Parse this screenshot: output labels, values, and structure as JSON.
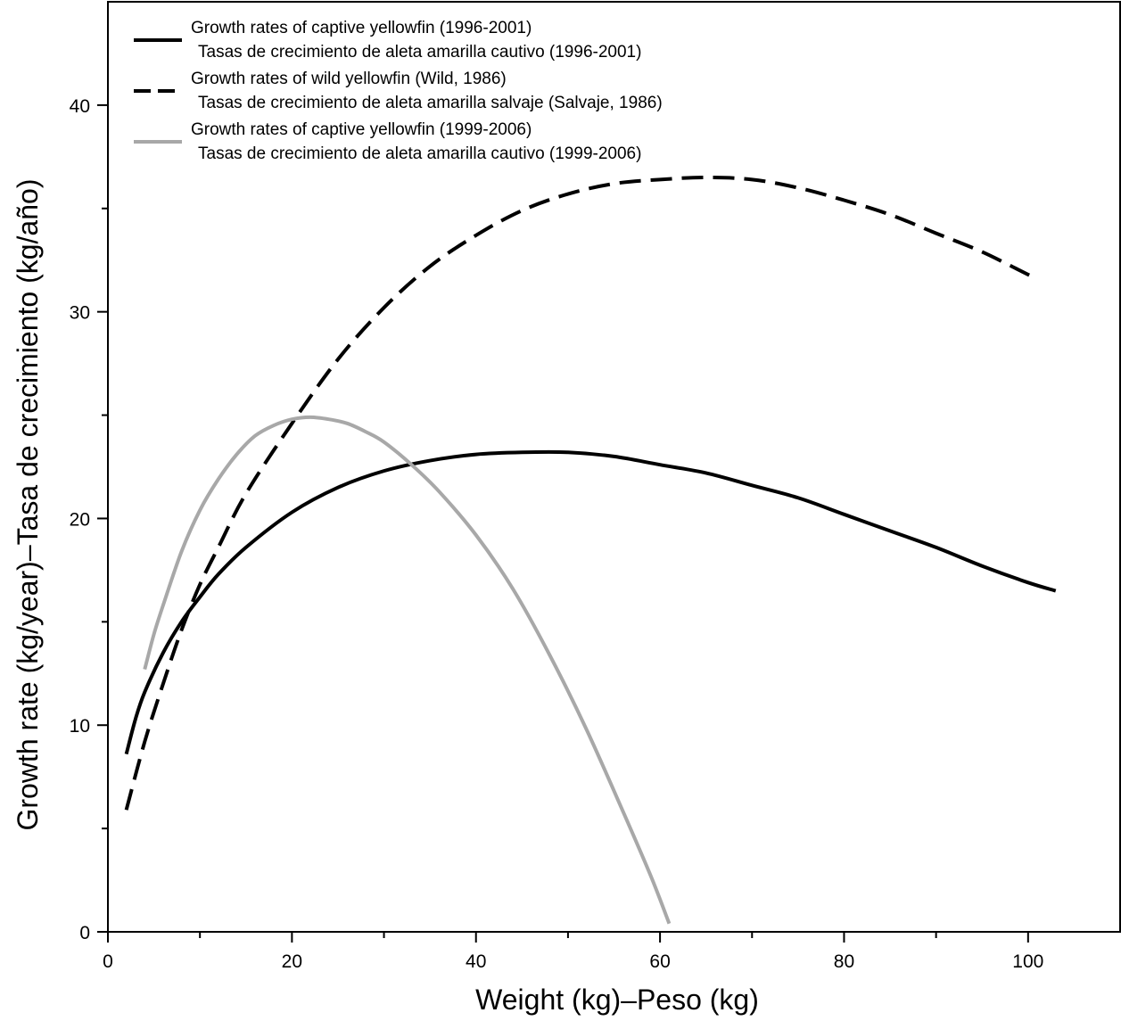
{
  "chart_data": {
    "type": "line",
    "title": "",
    "xlabel": "Weight (kg)–Peso (kg)",
    "ylabel": "Growth rate (kg/year)–Tasa de crecimiento (kg/año)",
    "xlim": [
      0,
      110
    ],
    "ylim": [
      0,
      45
    ],
    "x_ticks_major": [
      0,
      20,
      40,
      60,
      80,
      100
    ],
    "x_ticks_minor": [
      10,
      30,
      50,
      70,
      90
    ],
    "y_ticks_major": [
      0,
      10,
      20,
      30,
      40
    ],
    "y_ticks_minor": [
      5,
      15,
      25,
      35
    ],
    "grid": false,
    "legend_position": "top-left",
    "series": [
      {
        "name": "Growth rates of captive yellowfin (1996-2001)",
        "name_es": "Tasas de crecimiento de aleta amarilla cautivo (1996-2001)",
        "style": "solid",
        "color": "#000000",
        "x": [
          2,
          3,
          4,
          6,
          8,
          10,
          12,
          15,
          20,
          25,
          30,
          35,
          40,
          45,
          50,
          55,
          60,
          65,
          70,
          75,
          80,
          85,
          90,
          95,
          100,
          103
        ],
        "y": [
          8.6,
          10.3,
          11.6,
          13.5,
          15.0,
          16.2,
          17.3,
          18.6,
          20.3,
          21.5,
          22.3,
          22.8,
          23.1,
          23.2,
          23.2,
          23.0,
          22.6,
          22.2,
          21.6,
          21.0,
          20.2,
          19.4,
          18.6,
          17.7,
          16.9,
          16.5
        ]
      },
      {
        "name": "Growth rates of wild yellowfin (Wild, 1986)",
        "name_es": "Tasas de crecimiento de aleta amarilla salvaje (Salvaje, 1986)",
        "style": "dashed",
        "color": "#000000",
        "x": [
          2,
          4,
          6,
          8,
          10,
          12,
          15,
          20,
          25,
          30,
          35,
          40,
          45,
          50,
          55,
          60,
          65,
          70,
          75,
          80,
          85,
          90,
          95,
          100,
          101
        ],
        "y": [
          5.9,
          9.2,
          12.0,
          14.6,
          16.8,
          18.6,
          21.2,
          24.6,
          27.7,
          30.2,
          32.2,
          33.7,
          34.9,
          35.7,
          36.2,
          36.4,
          36.5,
          36.4,
          36.0,
          35.4,
          34.7,
          33.8,
          32.9,
          31.8,
          31.6
        ]
      },
      {
        "name": "Growth rates of captive yellowfin (1999-2006)",
        "name_es": "Tasas de crecimiento de aleta amarilla cautivo (1999-2006)",
        "style": "solid",
        "color": "#a8a8a8",
        "x": [
          4,
          5,
          6,
          8,
          10,
          12,
          14,
          16,
          18,
          20,
          22,
          24,
          26,
          28,
          30,
          33,
          36,
          40,
          44,
          48,
          52,
          56,
          59,
          61
        ],
        "y": [
          12.7,
          14.4,
          15.8,
          18.4,
          20.4,
          21.9,
          23.1,
          24.0,
          24.5,
          24.8,
          24.9,
          24.8,
          24.6,
          24.2,
          23.7,
          22.6,
          21.3,
          19.2,
          16.6,
          13.4,
          9.8,
          5.8,
          2.7,
          0.4
        ]
      }
    ]
  }
}
